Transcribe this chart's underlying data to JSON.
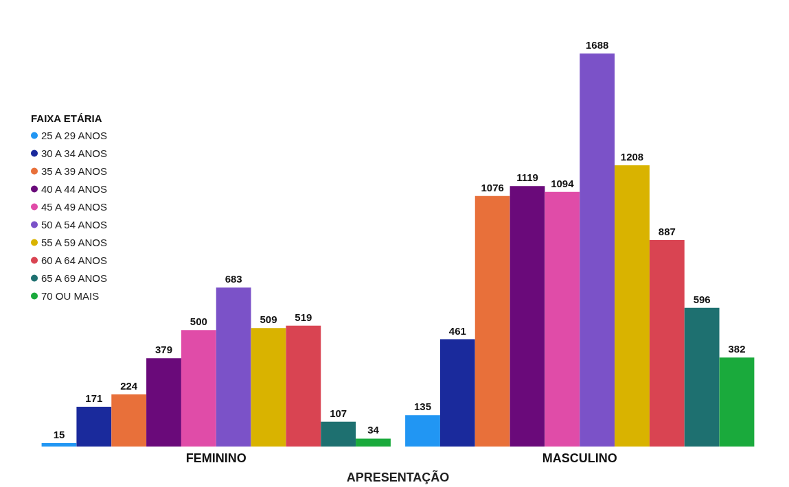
{
  "chart_data": {
    "type": "bar",
    "xlabel": "APRESENTAÇÃO",
    "legend_title": "FAIXA ETÁRIA",
    "legend": "left",
    "grid": false,
    "data_labels": true,
    "categories": [
      "FEMININO",
      "MASCULINO"
    ],
    "series": [
      {
        "name": "25 A 29 ANOS",
        "color": "#2196f3",
        "values": [
          15,
          135
        ]
      },
      {
        "name": "30 A 34 ANOS",
        "color": "#1a2a9c",
        "values": [
          171,
          461
        ]
      },
      {
        "name": "35 A 39 ANOS",
        "color": "#e8703a",
        "values": [
          224,
          1076
        ]
      },
      {
        "name": "40 A 44 ANOS",
        "color": "#6a0a7a",
        "values": [
          379,
          1119
        ]
      },
      {
        "name": "45 A 49 ANOS",
        "color": "#e04ca8",
        "values": [
          500,
          1094
        ]
      },
      {
        "name": "50 A 54 ANOS",
        "color": "#7b52c8",
        "values": [
          683,
          1688
        ]
      },
      {
        "name": "55 A 59 ANOS",
        "color": "#d9b300",
        "values": [
          509,
          1208
        ]
      },
      {
        "name": "60 A 64 ANOS",
        "color": "#d94452",
        "values": [
          519,
          887
        ]
      },
      {
        "name": "65 A 69 ANOS",
        "color": "#1e7070",
        "values": [
          107,
          596
        ]
      },
      {
        "name": "70 OU MAIS",
        "color": "#1aaa3c",
        "values": [
          34,
          382
        ]
      }
    ]
  }
}
